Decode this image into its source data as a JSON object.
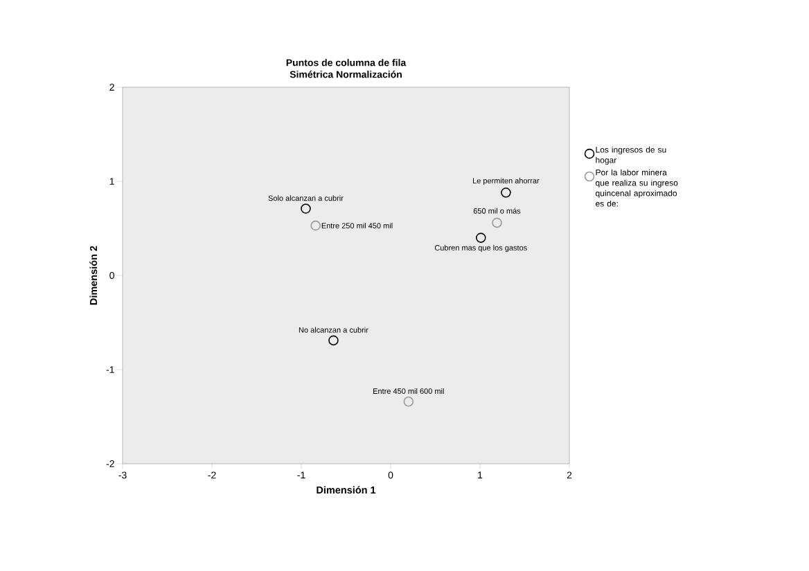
{
  "chart_data": {
    "type": "scatter",
    "title": "Puntos de columna  de fila",
    "subtitle": "Simétrica Normalización",
    "xlabel": "Dimensión 1",
    "ylabel": "Dimensión 2",
    "xlim": [
      -3,
      2
    ],
    "ylim": [
      -2,
      2
    ],
    "xticks": [
      -3,
      -2,
      -1,
      0,
      1,
      2
    ],
    "yticks": [
      -2,
      -1,
      0,
      1,
      2
    ],
    "marker": "circle",
    "legend": "right",
    "series": [
      {
        "name": "Los ingresos de su hogar",
        "color": "#000000",
        "x": [
          1.29,
          -0.95,
          1.01,
          -0.64
        ],
        "values": [
          0.88,
          0.71,
          0.4,
          -0.69
        ]
      },
      {
        "name": "Por la labor  minera que realiza su ingreso quincenal aproximado es de:",
        "color": "#999999",
        "x": [
          -0.84,
          1.19,
          0.2
        ],
        "values": [
          0.53,
          0.56,
          -1.34
        ]
      }
    ],
    "annotations": [
      {
        "text": "Le permiten ahorrar",
        "x": 1.29,
        "y": 0.88
      },
      {
        "text": "Solo alcanzan a cubrir",
        "x": -0.95,
        "y": 0.71
      },
      {
        "text": "Entre 250 mil  450 mil",
        "x": -0.84,
        "y": 0.53
      },
      {
        "text": "650 mil  o más",
        "x": 1.19,
        "y": 0.56
      },
      {
        "text": "Cubren mas que los gastos",
        "x": 1.01,
        "y": 0.4
      },
      {
        "text": "No alcanzan a cubrir",
        "x": -0.64,
        "y": -0.69
      },
      {
        "text": "Entre 450 mil  600 mil",
        "x": 0.2,
        "y": -1.34
      }
    ]
  }
}
